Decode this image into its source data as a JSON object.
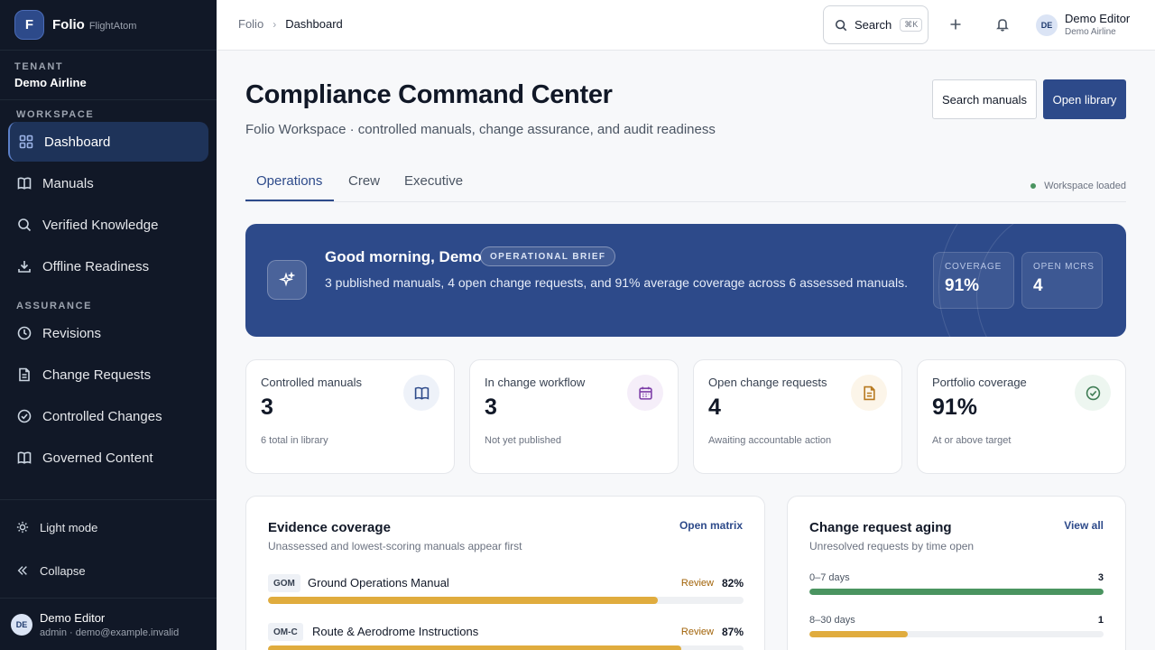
{
  "brand": {
    "logo_letter": "F",
    "name": "Folio",
    "sub": "FlightAtom"
  },
  "tenant": {
    "label": "TENANT",
    "name": "Demo Airline"
  },
  "sidebar": {
    "workspace_label": "WORKSPACE",
    "workspace_items": [
      {
        "label": "Dashboard",
        "icon": "grid-icon",
        "active": true
      },
      {
        "label": "Manuals",
        "icon": "book-icon"
      },
      {
        "label": "Verified Knowledge",
        "icon": "search-icon"
      },
      {
        "label": "Offline Readiness",
        "icon": "download-icon"
      }
    ],
    "assurance_label": "ASSURANCE",
    "assurance_items": [
      {
        "label": "Revisions",
        "icon": "clock-icon"
      },
      {
        "label": "Change Requests",
        "icon": "document-icon"
      },
      {
        "label": "Controlled Changes",
        "icon": "check-circle-icon"
      },
      {
        "label": "Governed Content",
        "icon": "book-icon"
      }
    ],
    "light_mode_label": "Light mode",
    "collapse_label": "Collapse",
    "user": {
      "initials": "DE",
      "name": "Demo Editor",
      "meta": "admin · demo@example.invalid"
    }
  },
  "header": {
    "breadcrumb_root": "Folio",
    "breadcrumb_sep": "›",
    "breadcrumb_current": "Dashboard",
    "search_label": "Search",
    "search_shortcut": "⌘K",
    "user_initials": "DE",
    "user_name": "Demo Editor",
    "user_org": "Demo Airline"
  },
  "page": {
    "title": "Compliance Command Center",
    "subtitle": "Folio Workspace · controlled manuals, change assurance, and audit readiness",
    "search_manuals_label": "Search manuals",
    "open_library_label": "Open library",
    "tabs": [
      "Operations",
      "Crew",
      "Executive"
    ],
    "active_tab": "Operations",
    "status_text": "Workspace loaded"
  },
  "brief": {
    "greeting": "Good morning, Demo",
    "badge": "OPERATIONAL BRIEF",
    "text": "3 published manuals, 4 open change requests, and 91% average coverage across 6 assessed manuals.",
    "stats": [
      {
        "label": "COVERAGE",
        "value": "91%"
      },
      {
        "label": "OPEN MCRS",
        "value": "4"
      }
    ]
  },
  "kpis": [
    {
      "label": "Controlled manuals",
      "value": "3",
      "sub": "6 total in library",
      "icon": "book-icon",
      "color": "#2d4a8a",
      "bg": "#eef2f9"
    },
    {
      "label": "In change workflow",
      "value": "3",
      "sub": "Not yet published",
      "icon": "calendar-icon",
      "color": "#7e3fa8",
      "bg": "#f5eef9"
    },
    {
      "label": "Open change requests",
      "value": "4",
      "sub": "Awaiting accountable action",
      "icon": "document-icon",
      "color": "#b7791f",
      "bg": "#fcf5e9"
    },
    {
      "label": "Portfolio coverage",
      "value": "91%",
      "sub": "At or above target",
      "icon": "check-circle-icon",
      "color": "#3f7d55",
      "bg": "#edf6f0"
    }
  ],
  "coverage_panel": {
    "title": "Evidence coverage",
    "subtitle": "Unassessed and lowest-scoring manuals appear first",
    "link": "Open matrix",
    "rows": [
      {
        "code": "GOM",
        "name": "Ground Operations Manual",
        "status": "Review",
        "pct_label": "82%",
        "pct": 82
      },
      {
        "code": "OM-C",
        "name": "Route & Aerodrome Instructions",
        "status": "Review",
        "pct_label": "87%",
        "pct": 87
      }
    ]
  },
  "aging_panel": {
    "title": "Change request aging",
    "subtitle": "Unresolved requests by time open",
    "link": "View all",
    "max": 3,
    "rows": [
      {
        "label": "0–7 days",
        "count": "3",
        "value": 3,
        "color": "#4a9460"
      },
      {
        "label": "8–30 days",
        "count": "1",
        "value": 1,
        "color": "#e0ac3e"
      }
    ]
  },
  "colors": {
    "accent": "#2d4a8a",
    "sidebar_bg": "#111827",
    "review": "#a16207"
  }
}
